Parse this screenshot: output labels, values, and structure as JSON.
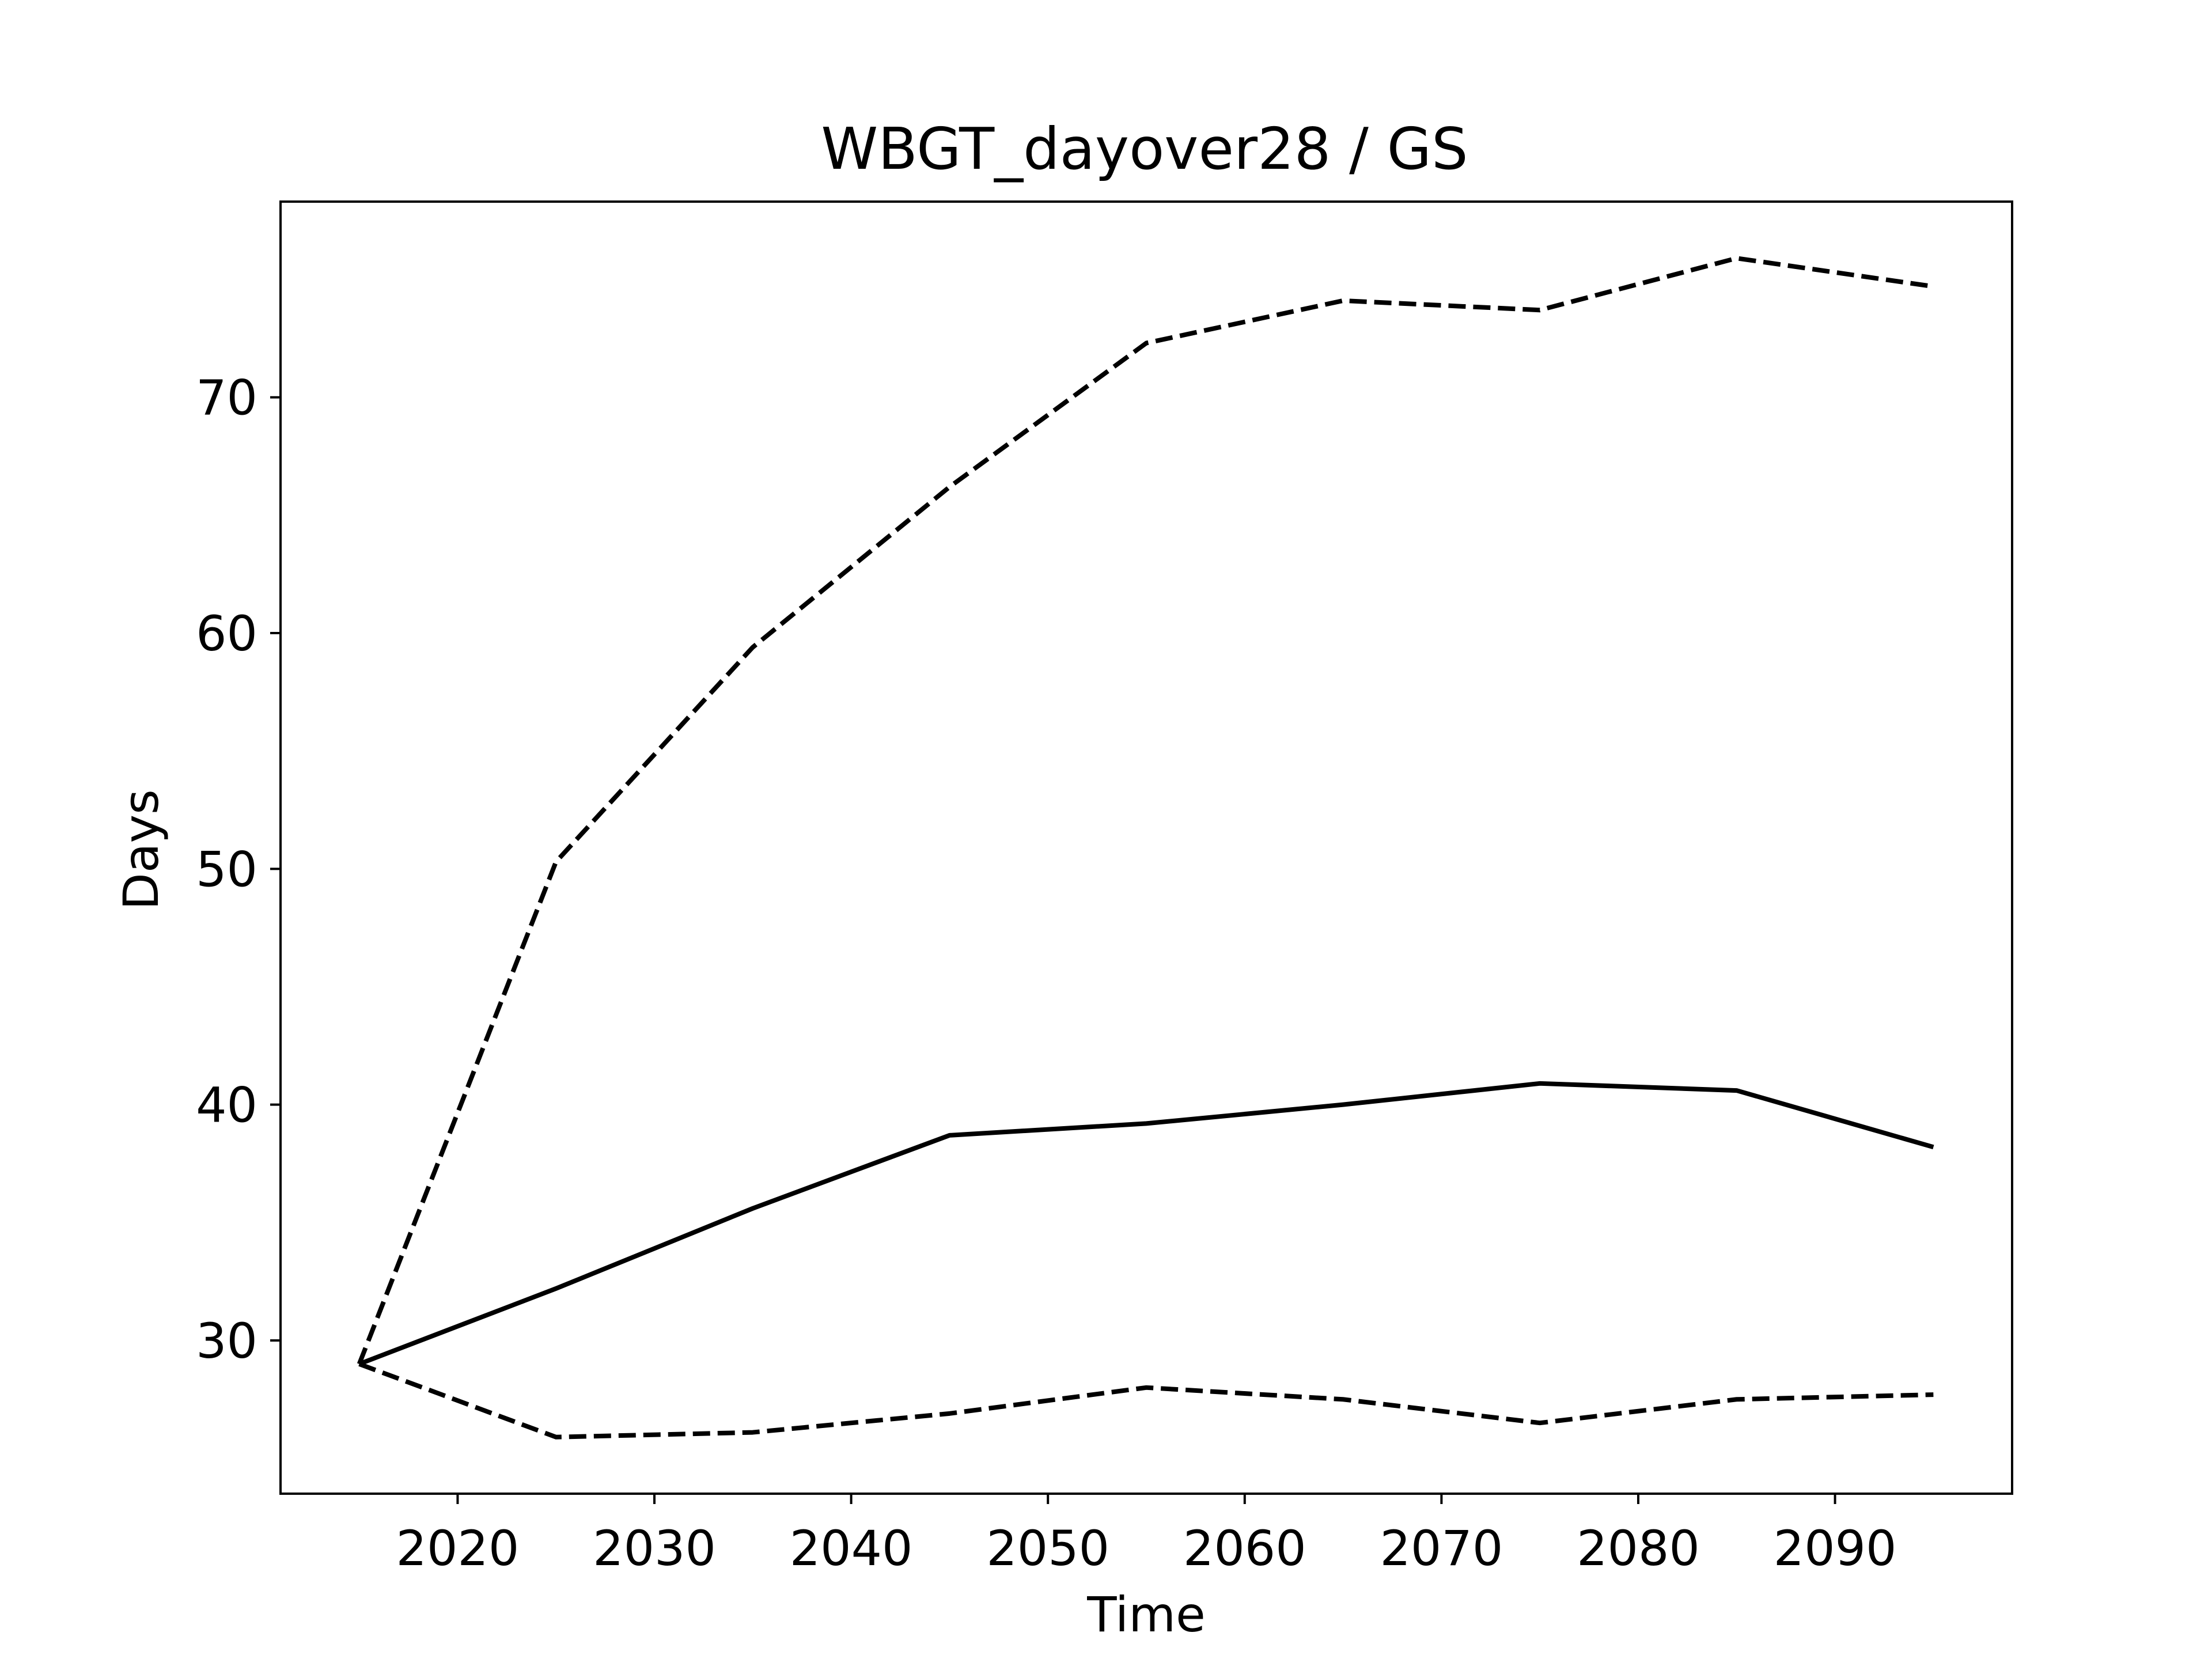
{
  "chart_data": {
    "type": "line",
    "title": "WBGT_dayover28 / GS",
    "xlabel": "Time",
    "ylabel": "Days",
    "xlim": [
      2011,
      2099
    ],
    "ylim": [
      23.5,
      78.3
    ],
    "xticks": [
      2020,
      2030,
      2040,
      2050,
      2060,
      2070,
      2080,
      2090
    ],
    "yticks": [
      30,
      40,
      50,
      60,
      70
    ],
    "grid": false,
    "legend": "none",
    "x": [
      2015,
      2025,
      2035,
      2045,
      2055,
      2065,
      2075,
      2085,
      2095
    ],
    "series": [
      {
        "style": "dashed",
        "color": "#000000",
        "values": [
          29.0,
          50.3,
          59.4,
          66.2,
          72.3,
          74.1,
          73.7,
          75.9,
          74.7
        ]
      },
      {
        "style": "solid",
        "color": "#000000",
        "values": [
          29.0,
          32.2,
          35.6,
          38.7,
          39.2,
          40.0,
          40.9,
          40.6,
          38.2
        ]
      },
      {
        "style": "dashed",
        "color": "#000000",
        "values": [
          29.0,
          25.9,
          26.1,
          26.9,
          28.0,
          27.5,
          26.5,
          27.5,
          27.7
        ]
      }
    ]
  }
}
